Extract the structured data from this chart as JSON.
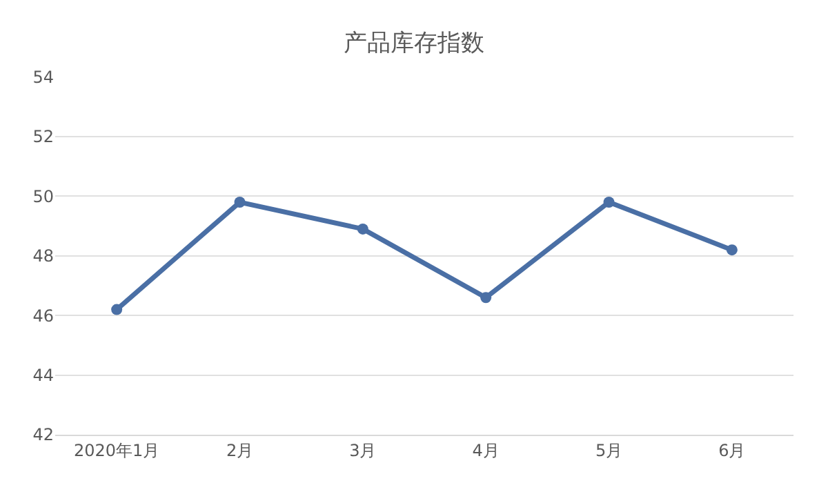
{
  "chart_data": {
    "type": "line",
    "title": "产品库存指数",
    "categories": [
      "2020年1月",
      "2月",
      "3月",
      "4月",
      "5月",
      "6月"
    ],
    "series": [
      {
        "color": "#4a6fa5",
        "values": [
          46.2,
          49.8,
          48.9,
          46.6,
          49.8,
          48.2
        ]
      }
    ],
    "ylim": [
      42,
      54
    ],
    "yticks": [
      42,
      44,
      46,
      48,
      50,
      52,
      54
    ],
    "grid": "y",
    "marker": "circle",
    "line_style": "solid"
  }
}
